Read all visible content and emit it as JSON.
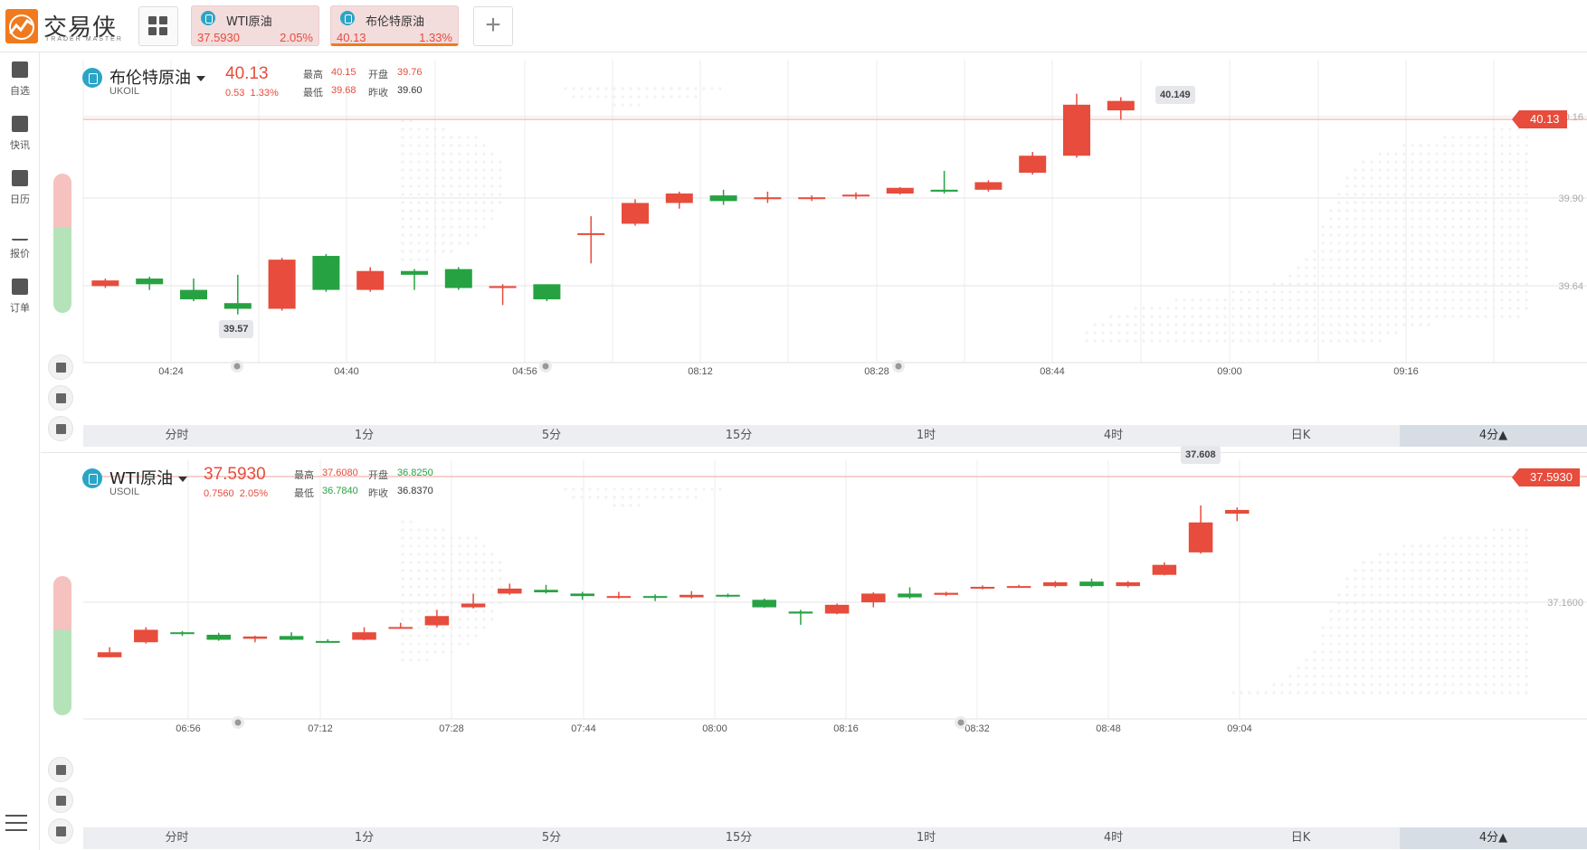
{
  "app": {
    "logo_text": "交易侠",
    "logo_sub": "TRADER MASTER"
  },
  "tabs": [
    {
      "name": "WTI原油",
      "price": "37.5930",
      "pct": "2.05%",
      "active": false
    },
    {
      "name": "布伦特原油",
      "price": "40.13",
      "pct": "1.33%",
      "active": true
    }
  ],
  "sidebar": {
    "items": [
      {
        "label": "自选",
        "icon": "bookmark-plus-icon"
      },
      {
        "label": "快讯",
        "icon": "news-list-icon"
      },
      {
        "label": "日历",
        "icon": "calendar-icon"
      },
      {
        "label": "报价",
        "icon": "line-chart-icon"
      },
      {
        "label": "订单",
        "icon": "clipboard-icon"
      }
    ]
  },
  "periods": [
    "分时",
    "1分",
    "5分",
    "15分",
    "1时",
    "4时",
    "日K",
    "4分▲"
  ],
  "charts": [
    {
      "name": "布伦特原油",
      "code": "UKOIL",
      "price": "40.13",
      "change": "0.53",
      "pct": "1.33%",
      "high_label": "最高",
      "high": "40.15",
      "open_label": "开盘",
      "open": "39.76",
      "low_label": "最低",
      "low": "39.68",
      "prev_label": "昨收",
      "prev": "39.60",
      "current_tag": "40.13",
      "max_tip": "40.149",
      "min_tip": "39.57",
      "grid_labels": [
        "40.16",
        "39.90",
        "39.64"
      ],
      "x_labels": [
        "04:24",
        "04:40",
        "04:56",
        "08:12",
        "08:28",
        "08:44",
        "09:00",
        "09:16"
      ],
      "chart_data": {
        "type": "candlestick",
        "ylim": [
          39.44,
          40.22
        ],
        "candles": [
          {
            "o": 39.64,
            "c": 39.655,
            "h": 39.66,
            "l": 39.635,
            "up": true
          },
          {
            "o": 39.66,
            "c": 39.645,
            "h": 39.665,
            "l": 39.63,
            "up": false
          },
          {
            "o": 39.63,
            "c": 39.605,
            "h": 39.66,
            "l": 39.6,
            "up": false
          },
          {
            "o": 39.595,
            "c": 39.58,
            "h": 39.67,
            "l": 39.565,
            "up": false
          },
          {
            "o": 39.58,
            "c": 39.71,
            "h": 39.715,
            "l": 39.575,
            "up": true
          },
          {
            "o": 39.72,
            "c": 39.63,
            "h": 39.725,
            "l": 39.625,
            "up": false
          },
          {
            "o": 39.63,
            "c": 39.68,
            "h": 39.69,
            "l": 39.625,
            "up": true
          },
          {
            "o": 39.68,
            "c": 39.67,
            "h": 39.685,
            "l": 39.63,
            "up": false
          },
          {
            "o": 39.685,
            "c": 39.635,
            "h": 39.69,
            "l": 39.63,
            "up": false
          },
          {
            "o": 39.64,
            "c": 39.635,
            "h": 39.645,
            "l": 39.59,
            "up": true
          },
          {
            "o": 39.645,
            "c": 39.605,
            "h": 39.645,
            "l": 39.6,
            "up": false
          },
          {
            "o": 39.78,
            "c": 39.78,
            "h": 39.825,
            "l": 39.7,
            "up": true
          },
          {
            "o": 39.805,
            "c": 39.86,
            "h": 39.87,
            "l": 39.8,
            "up": true
          },
          {
            "o": 39.86,
            "c": 39.885,
            "h": 39.89,
            "l": 39.845,
            "up": true
          },
          {
            "o": 39.88,
            "c": 39.865,
            "h": 39.895,
            "l": 39.855,
            "up": false
          },
          {
            "o": 39.87,
            "c": 39.875,
            "h": 39.89,
            "l": 39.86,
            "up": true
          },
          {
            "o": 39.873,
            "c": 39.875,
            "h": 39.88,
            "l": 39.865,
            "up": true
          },
          {
            "o": 39.878,
            "c": 39.882,
            "h": 39.888,
            "l": 39.87,
            "up": true
          },
          {
            "o": 39.885,
            "c": 39.9,
            "h": 39.902,
            "l": 39.882,
            "up": true
          },
          {
            "o": 39.895,
            "c": 39.89,
            "h": 39.945,
            "l": 39.885,
            "up": false
          },
          {
            "o": 39.895,
            "c": 39.915,
            "h": 39.92,
            "l": 39.89,
            "up": true
          },
          {
            "o": 39.94,
            "c": 39.985,
            "h": 39.995,
            "l": 39.935,
            "up": true
          },
          {
            "o": 39.985,
            "c": 40.12,
            "h": 40.149,
            "l": 39.98,
            "up": true
          },
          {
            "o": 40.105,
            "c": 40.13,
            "h": 40.14,
            "l": 40.08,
            "up": true
          }
        ]
      }
    },
    {
      "name": "WTI原油",
      "code": "USOIL",
      "price": "37.5930",
      "change": "0.7560",
      "pct": "2.05%",
      "high_label": "最高",
      "high": "37.6080",
      "open_label": "开盘",
      "open": "36.8250",
      "low_label": "最低",
      "low": "36.7840",
      "prev_label": "昨收",
      "prev": "36.8370",
      "current_tag": "37.5930",
      "max_tip": "37.608",
      "grid_labels": [
        "37.1600"
      ],
      "x_labels": [
        "06:56",
        "07:12",
        "07:28",
        "07:44",
        "08:00",
        "08:16",
        "08:32",
        "08:48",
        "09:04"
      ],
      "chart_data": {
        "type": "candlestick",
        "ylim": [
          36.84,
          37.76
        ],
        "candles": [
          {
            "o": 37.0,
            "c": 37.02,
            "h": 37.04,
            "l": 37.0,
            "up": true
          },
          {
            "o": 37.06,
            "c": 37.11,
            "h": 37.12,
            "l": 37.055,
            "up": true
          },
          {
            "o": 37.1,
            "c": 37.098,
            "h": 37.105,
            "l": 37.085,
            "up": false
          },
          {
            "o": 37.09,
            "c": 37.07,
            "h": 37.098,
            "l": 37.066,
            "up": false
          },
          {
            "o": 37.083,
            "c": 37.074,
            "h": 37.086,
            "l": 37.06,
            "up": true
          },
          {
            "o": 37.085,
            "c": 37.07,
            "h": 37.1,
            "l": 37.068,
            "up": false
          },
          {
            "o": 37.063,
            "c": 37.065,
            "h": 37.072,
            "l": 37.058,
            "up": false
          },
          {
            "o": 37.07,
            "c": 37.1,
            "h": 37.12,
            "l": 37.068,
            "up": true
          },
          {
            "o": 37.12,
            "c": 37.121,
            "h": 37.138,
            "l": 37.118,
            "up": true
          },
          {
            "o": 37.128,
            "c": 37.165,
            "h": 37.19,
            "l": 37.12,
            "up": true
          },
          {
            "o": 37.2,
            "c": 37.215,
            "h": 37.255,
            "l": 37.195,
            "up": true
          },
          {
            "o": 37.255,
            "c": 37.275,
            "h": 37.295,
            "l": 37.25,
            "up": true
          },
          {
            "o": 37.27,
            "c": 37.26,
            "h": 37.29,
            "l": 37.255,
            "up": false
          },
          {
            "o": 37.255,
            "c": 37.245,
            "h": 37.262,
            "l": 37.23,
            "up": false
          },
          {
            "o": 37.24,
            "c": 37.245,
            "h": 37.262,
            "l": 37.235,
            "up": true
          },
          {
            "o": 37.245,
            "c": 37.243,
            "h": 37.252,
            "l": 37.225,
            "up": false
          },
          {
            "o": 37.24,
            "c": 37.25,
            "h": 37.265,
            "l": 37.235,
            "up": true
          },
          {
            "o": 37.25,
            "c": 37.245,
            "h": 37.255,
            "l": 37.24,
            "up": false
          },
          {
            "o": 37.23,
            "c": 37.2,
            "h": 37.235,
            "l": 37.198,
            "up": false
          },
          {
            "o": 37.183,
            "c": 37.175,
            "h": 37.19,
            "l": 37.13,
            "up": false
          },
          {
            "o": 37.175,
            "c": 37.21,
            "h": 37.215,
            "l": 37.172,
            "up": true
          },
          {
            "o": 37.22,
            "c": 37.255,
            "h": 37.26,
            "l": 37.2,
            "up": true
          },
          {
            "o": 37.255,
            "c": 37.24,
            "h": 37.28,
            "l": 37.235,
            "up": false
          },
          {
            "o": 37.258,
            "c": 37.25,
            "h": 37.262,
            "l": 37.245,
            "up": true
          },
          {
            "o": 37.28,
            "c": 37.282,
            "h": 37.288,
            "l": 37.272,
            "up": true
          },
          {
            "o": 37.283,
            "c": 37.285,
            "h": 37.29,
            "l": 37.278,
            "up": true
          },
          {
            "o": 37.285,
            "c": 37.3,
            "h": 37.305,
            "l": 37.28,
            "up": true
          },
          {
            "o": 37.285,
            "c": 37.303,
            "h": 37.315,
            "l": 37.28,
            "up": false
          },
          {
            "o": 37.285,
            "c": 37.3,
            "h": 37.305,
            "l": 37.28,
            "up": true
          },
          {
            "o": 37.33,
            "c": 37.37,
            "h": 37.38,
            "l": 37.328,
            "up": true
          },
          {
            "o": 37.42,
            "c": 37.54,
            "h": 37.608,
            "l": 37.415,
            "up": true
          },
          {
            "o": 37.575,
            "c": 37.59,
            "h": 37.6,
            "l": 37.545,
            "up": true
          }
        ]
      }
    }
  ],
  "colors": {
    "up": "#e74c3c",
    "down": "#27a243",
    "accent": "#f07a1d",
    "coin": "#2aa5c6"
  }
}
